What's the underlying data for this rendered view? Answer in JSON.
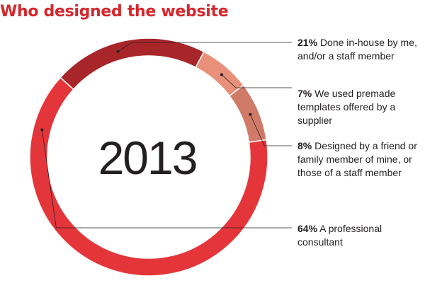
{
  "title": "Who designed the website",
  "chart_data": {
    "type": "pie",
    "center_label": "2013",
    "slices": [
      {
        "value": 21,
        "pct": "21%",
        "label": "Done in-house by me, and/or a staff member",
        "color": "#a8252a"
      },
      {
        "value": 7,
        "pct": "7%",
        "label": "We used premade templates offered by a supplier",
        "color": "#e8907a"
      },
      {
        "value": 8,
        "pct": "8%",
        "label": "Designed by a friend or family member of mine, or those of a staff member",
        "color": "#d07a68"
      },
      {
        "value": 64,
        "pct": "64%",
        "label": "A professional consultant",
        "color": "#e4353a"
      }
    ]
  }
}
